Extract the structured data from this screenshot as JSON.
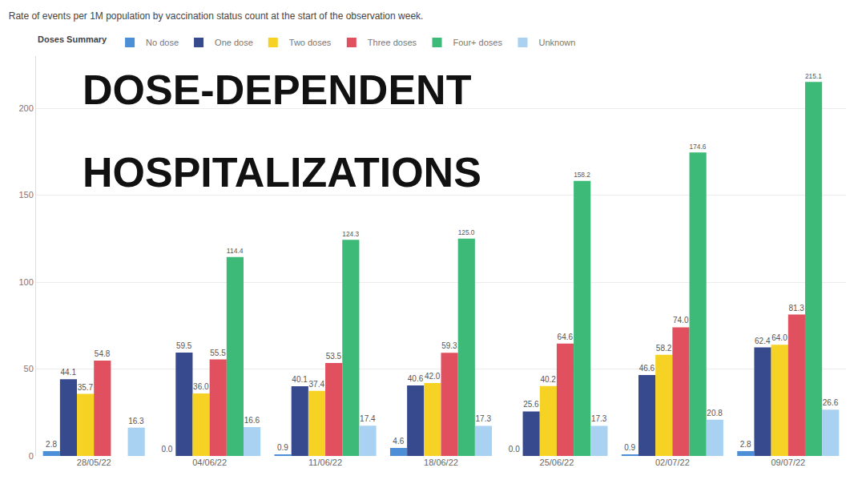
{
  "chart_data": {
    "type": "bar",
    "title": "Rate of events per 1M population by vaccination status count at the start of the observation week.",
    "legend_title": "Doses Summary",
    "legend": "top-left",
    "annotations": [
      "DOSE-DEPENDENT",
      "HOSPITALIZATIONS"
    ],
    "categories": [
      "28/05/22",
      "04/06/22",
      "11/06/22",
      "18/06/22",
      "25/06/22",
      "02/07/22",
      "09/07/22"
    ],
    "series": [
      {
        "name": "No dose",
        "color": "#4c8fd6",
        "values": [
          2.8,
          0.0,
          0.9,
          4.6,
          0.0,
          0.9,
          2.8
        ],
        "value_labels": [
          "2.8",
          "0.0",
          "0.9",
          "4.6",
          "0.0",
          "0.9",
          "2.8"
        ]
      },
      {
        "name": "One dose",
        "color": "#384a8e",
        "values": [
          44.1,
          59.5,
          40.1,
          40.6,
          25.6,
          46.6,
          62.4
        ],
        "value_labels": [
          "44.1",
          "59.5",
          "40.1",
          "40.6",
          "25.6",
          "46.6",
          "62.4"
        ]
      },
      {
        "name": "Two doses",
        "color": "#f5d224",
        "values": [
          35.7,
          36.0,
          37.4,
          42.0,
          40.2,
          58.2,
          64.0
        ],
        "value_labels": [
          "35.7",
          "36.0",
          "37.4",
          "42.0",
          "40.2",
          "58.2",
          "64.0"
        ]
      },
      {
        "name": "Three doses",
        "color": "#e0505e",
        "values": [
          54.8,
          55.5,
          53.5,
          59.3,
          64.6,
          74.0,
          81.3
        ],
        "value_labels": [
          "54.8",
          "55.5",
          "53.5",
          "59.3",
          "64.6",
          "74.0",
          "81.3"
        ]
      },
      {
        "name": "Four+ doses",
        "color": "#3dba78",
        "values": [
          null,
          114.4,
          124.3,
          125.0,
          158.2,
          174.6,
          215.1
        ],
        "value_labels": [
          null,
          "114.4",
          "124.3",
          "125.0",
          "158.2",
          "174.6",
          "215.1"
        ]
      },
      {
        "name": "Unknown",
        "color": "#a9d1f1",
        "values": [
          16.3,
          16.6,
          17.4,
          17.3,
          17.3,
          20.8,
          26.6
        ],
        "value_labels": [
          "16.3",
          "16.6",
          "17.4",
          "17.3",
          "17.3",
          "20.8",
          "26.6"
        ]
      }
    ],
    "ylim": [
      0,
      230
    ],
    "yticks": [
      0,
      50,
      100,
      150,
      200
    ],
    "grid": true,
    "data_labels": true
  }
}
